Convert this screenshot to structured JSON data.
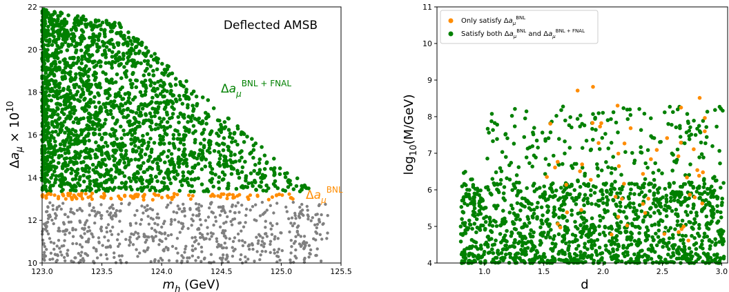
{
  "chart_data": [
    {
      "type": "scatter",
      "title": "",
      "annotation": "Deflected AMSB",
      "xlabel": "m_h (GeV)",
      "ylabel": "Δa_μ × 10^10",
      "xlim": [
        123.0,
        125.5
      ],
      "ylim": [
        10,
        22
      ],
      "xticks": [
        "123.0",
        "123.5",
        "124.0",
        "124.5",
        "125.0",
        "125.5"
      ],
      "yticks": [
        "10",
        "12",
        "14",
        "16",
        "18",
        "20",
        "22"
      ],
      "series": [
        {
          "name": "Δa_μ^{BNL+FNAL}",
          "color": "#008000",
          "region": "Dense band from y≈13.3 up to 22; upper envelope falls from ~22 at x=123.0 to ~13.5 at x=125.2"
        },
        {
          "name": "Δa_μ^{BNL}",
          "color": "#ff8c00",
          "region": "Narrow band y≈12.9–13.3 across x=123.0–125.1"
        },
        {
          "name": "",
          "color": "#808080",
          "region": "Points y=10–12.9, x=123.0–125.4"
        }
      ],
      "series_labels": [
        "Δa_μ^{BNL+FNAL}",
        "Δa_μ^{BNL}"
      ]
    },
    {
      "type": "scatter",
      "title": "",
      "xlabel": "d",
      "ylabel": "log_10(M/GeV)",
      "xlim": [
        0.6,
        3.05
      ],
      "ylim": [
        4,
        11
      ],
      "xticks": [
        "1.0",
        "1.5",
        "2.0",
        "2.5",
        "3.0"
      ],
      "yticks": [
        "4",
        "5",
        "6",
        "7",
        "8",
        "9",
        "10",
        "11"
      ],
      "legend": {
        "placement": "top-left",
        "entries": [
          "Only satisfy Δa_μ^{BNL}",
          "Satisfy both Δa_μ^{BNL} and Δa_μ^{BNL+FNAL}"
        ]
      },
      "series": [
        {
          "name": "Satisfy both Δa_μ^{BNL} and Δa_μ^{BNL+FNAL}",
          "color": "#008000",
          "region": "Most dense near y=4–6.5 for d=0.8–3.0; sparse up to ~8.3"
        },
        {
          "name": "Only satisfy Δa_μ^{BNL}",
          "color": "#ff8c00",
          "region": "Scattered y≈4.5–8.9, d=1.5–2.9"
        }
      ]
    }
  ]
}
